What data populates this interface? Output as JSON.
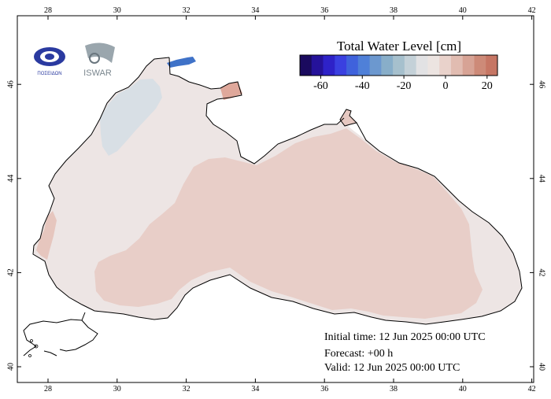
{
  "map": {
    "lon_ticks": [
      "28",
      "30",
      "32",
      "34",
      "36",
      "38",
      "40",
      "42"
    ],
    "lat_ticks": [
      "40",
      "42",
      "44",
      "46"
    ]
  },
  "colorbar": {
    "title": "Total Water Level [cm]",
    "tick_labels": [
      "-60",
      "-40",
      "-20",
      "0",
      "20"
    ],
    "colors": [
      "#1a0a5e",
      "#25129a",
      "#2e22c8",
      "#3a40e0",
      "#3f62dc",
      "#4f80d8",
      "#6c98cf",
      "#88aec9",
      "#a6c0cd",
      "#c4d1d8",
      "#e2e2e4",
      "#ece4e1",
      "#e9d2cb",
      "#e1bcb1",
      "#d7a395",
      "#cd8a78",
      "#c67664"
    ],
    "range": [
      -70,
      25
    ]
  },
  "info": {
    "initial_time": "Initial time: 12 Jun 2025 00:00 UTC",
    "forecast": "Forecast: +00 h",
    "valid": "Valid: 12 Jun 2025 00:00 UTC"
  },
  "logos": {
    "left": {
      "name": "hcmr-poseidon-logo",
      "text": "ΠΟΣΕΙΔΩΝ"
    },
    "right": {
      "name": "iswar-logo",
      "text": "ISWAR"
    }
  },
  "legend_colors": {
    "positive_field": "#e8cec8",
    "near_zero_field": "#ede5e4",
    "negative_field": "#d8dfe5",
    "land": "#ffffff",
    "coast": "#000000"
  }
}
